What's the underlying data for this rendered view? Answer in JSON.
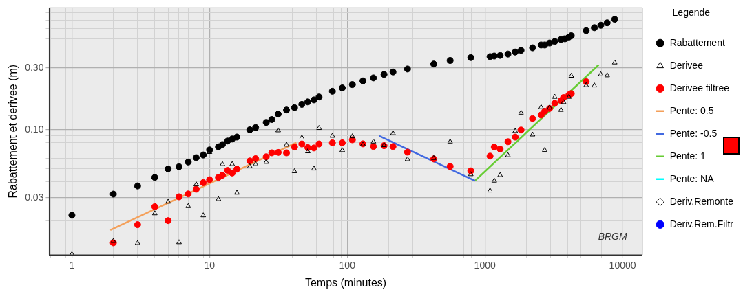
{
  "chart_data": {
    "type": "scatter",
    "xlabel": "Temps (minutes)",
    "ylabel": "Rabattement et derivee (m)",
    "legend": "right",
    "legend_title": "Legende",
    "log": "xy",
    "grid": true,
    "xlim": [
      0.684,
      13900
    ],
    "ylim": [
      0.0109,
      0.869
    ],
    "xticks": [
      {
        "value": 0.7,
        "label": null
      },
      {
        "value": 0.8,
        "label": null
      },
      {
        "value": 0.9,
        "label": null
      },
      1,
      {
        "value": 2,
        "label": null
      },
      {
        "value": 3,
        "label": null
      },
      {
        "value": 4,
        "label": null
      },
      {
        "value": 5,
        "label": null
      },
      {
        "value": 6,
        "label": null
      },
      {
        "value": 7,
        "label": null
      },
      {
        "value": 8,
        "label": null
      },
      {
        "value": 9,
        "label": null
      },
      10,
      {
        "value": 20,
        "label": null
      },
      {
        "value": 30,
        "label": null
      },
      {
        "value": 40,
        "label": null
      },
      {
        "value": 50,
        "label": null
      },
      {
        "value": 60,
        "label": null
      },
      {
        "value": 70,
        "label": null
      },
      {
        "value": 80,
        "label": null
      },
      {
        "value": 90,
        "label": null
      },
      100,
      {
        "value": 200,
        "label": null
      },
      {
        "value": 300,
        "label": null
      },
      {
        "value": 400,
        "label": null
      },
      {
        "value": 500,
        "label": null
      },
      {
        "value": 600,
        "label": null
      },
      {
        "value": 700,
        "label": null
      },
      {
        "value": 800,
        "label": null
      },
      {
        "value": 900,
        "label": null
      },
      1000,
      {
        "value": 2000,
        "label": null
      },
      {
        "value": 3000,
        "label": null
      },
      {
        "value": 4000,
        "label": null
      },
      {
        "value": 5000,
        "label": null
      },
      {
        "value": 6000,
        "label": null
      },
      {
        "value": 7000,
        "label": null
      },
      {
        "value": 8000,
        "label": null
      },
      {
        "value": 9000,
        "label": null
      },
      10000
    ],
    "yticks": [
      {
        "value": 0.02,
        "label": null
      },
      0.03,
      {
        "value": 0.04,
        "label": null
      },
      {
        "value": 0.05,
        "label": null
      },
      {
        "value": 0.06,
        "label": null
      },
      {
        "value": 0.07,
        "label": null
      },
      {
        "value": 0.08,
        "label": null
      },
      {
        "value": 0.09,
        "label": null
      },
      {
        "value": 0.1,
        "label": "0.10"
      },
      {
        "value": 0.2,
        "label": null
      },
      {
        "value": 0.3,
        "label": "0.30"
      },
      {
        "value": 0.4,
        "label": null
      },
      {
        "value": 0.5,
        "label": null
      },
      {
        "value": 0.6,
        "label": null
      },
      {
        "value": 0.7,
        "label": null
      },
      {
        "value": 0.8,
        "label": null
      }
    ],
    "annotations": [
      "BRGM"
    ],
    "series": [
      {
        "name": "Rabattement",
        "color": "#000000",
        "marker": "circle",
        "x": [
          1,
          2,
          3,
          4,
          5,
          6,
          7,
          8,
          9,
          10,
          11.6,
          12.4,
          13.5,
          14.6,
          15.8,
          19.6,
          21.6,
          25.8,
          28.3,
          31.5,
          36.2,
          41.4,
          46.8,
          51.7,
          57.3,
          62.4,
          78,
          92,
          109,
          130,
          155,
          185,
          215,
          274,
          425,
          559,
          790,
          1090,
          1170,
          1290,
          1470,
          1660,
          1830,
          2220,
          2560,
          2720,
          2950,
          3220,
          3570,
          3810,
          4080,
          4240,
          5440,
          6240,
          6950,
          7730,
          8770
        ],
        "values": [
          0.022,
          0.032,
          0.037,
          0.043,
          0.05,
          0.052,
          0.0565,
          0.061,
          0.064,
          0.07,
          0.074,
          0.077,
          0.082,
          0.085,
          0.088,
          0.1,
          0.104,
          0.114,
          0.12,
          0.132,
          0.142,
          0.148,
          0.157,
          0.164,
          0.17,
          0.179,
          0.198,
          0.21,
          0.223,
          0.238,
          0.251,
          0.267,
          0.279,
          0.294,
          0.321,
          0.342,
          0.36,
          0.366,
          0.37,
          0.374,
          0.383,
          0.397,
          0.409,
          0.428,
          0.45,
          0.45,
          0.466,
          0.479,
          0.496,
          0.502,
          0.518,
          0.53,
          0.58,
          0.611,
          0.638,
          0.666,
          0.709
        ]
      },
      {
        "name": "Derivee",
        "color": "#000000",
        "marker": "triangle",
        "x": [
          1,
          2,
          3,
          4,
          5,
          6,
          7,
          8,
          9,
          10,
          11.6,
          12.4,
          14.6,
          15.8,
          19.6,
          21.6,
          25.8,
          31.5,
          36.2,
          41.4,
          46.8,
          51.7,
          57.3,
          62.4,
          78,
          92,
          109,
          130,
          155,
          185,
          215,
          274,
          425,
          559,
          790,
          1090,
          1170,
          1290,
          1470,
          1660,
          1830,
          2220,
          2560,
          2720,
          2950,
          3220,
          3570,
          3730,
          4080,
          4240,
          5440,
          6240,
          6950,
          7730,
          8770
        ],
        "values": [
          0.011,
          0.0139,
          0.0134,
          0.0227,
          0.0279,
          0.0136,
          0.0258,
          0.0379,
          0.0219,
          0.0673,
          0.0292,
          0.0543,
          0.0543,
          0.0327,
          0.0522,
          0.0543,
          0.0565,
          0.0988,
          0.0766,
          0.0479,
          0.0869,
          0.0681,
          0.0502,
          0.103,
          0.0897,
          0.0695,
          0.0889,
          0.0772,
          0.081,
          0.076,
          0.094,
          0.0592,
          0.0605,
          0.081,
          0.0454,
          0.034,
          0.0405,
          0.0447,
          0.0636,
          0.0977,
          0.135,
          0.0918,
          0.149,
          0.0697,
          0.148,
          0.179,
          0.142,
          0.163,
          0.179,
          0.26,
          0.22,
          0.219,
          0.267,
          0.262,
          0.329
        ]
      },
      {
        "name": "Derivee filtree",
        "color": "#ff0000",
        "marker": "circle",
        "x": [
          2,
          3,
          4,
          5,
          6,
          7,
          8,
          9,
          10,
          11.6,
          12.4,
          13.5,
          14.6,
          15.8,
          19.6,
          21.6,
          25.8,
          28.3,
          31.5,
          36.2,
          41.4,
          46.8,
          51.7,
          57.3,
          62.4,
          78,
          92,
          109,
          130,
          155,
          185,
          215,
          274,
          425,
          559,
          790,
          1090,
          1170,
          1290,
          1470,
          1660,
          1830,
          2220,
          2560,
          2720,
          2950,
          3220,
          3570,
          3730,
          4080,
          4240,
          5440
        ],
        "values": [
          0.0135,
          0.0186,
          0.0256,
          0.02,
          0.0305,
          0.0321,
          0.0349,
          0.0392,
          0.0413,
          0.043,
          0.0447,
          0.0487,
          0.0465,
          0.0498,
          0.0576,
          0.06,
          0.062,
          0.0665,
          0.067,
          0.0665,
          0.0737,
          0.0778,
          0.073,
          0.0725,
          0.0778,
          0.0794,
          0.0794,
          0.0838,
          0.078,
          0.0743,
          0.0755,
          0.0743,
          0.0673,
          0.0597,
          0.0523,
          0.0483,
          0.0627,
          0.0737,
          0.0711,
          0.081,
          0.0879,
          0.0996,
          0.122,
          0.13,
          0.139,
          0.146,
          0.16,
          0.168,
          0.177,
          0.186,
          0.19,
          0.235
        ]
      },
      {
        "name": "Pente: 0.5",
        "type": "line",
        "color": "#f4a05a",
        "marker": "none",
        "x": [
          1.9,
          42.7
        ],
        "values": [
          0.0169,
          0.0796
        ]
      },
      {
        "name": "Pente: -0.5",
        "type": "line",
        "color": "#4169e1",
        "marker": "none",
        "x": [
          171,
          847
        ],
        "values": [
          0.0897,
          0.0405
        ]
      },
      {
        "name": "Pente: 1",
        "type": "line",
        "color": "#66cc33",
        "marker": "none",
        "x": [
          847,
          6700
        ],
        "values": [
          0.0405,
          0.316
        ]
      },
      {
        "name": "Pente: NA",
        "type": "line",
        "color": "#00ffff",
        "marker": "none"
      },
      {
        "name": "Deriv.Remonte",
        "color": "#000000",
        "marker": "diamond"
      },
      {
        "name": "Deriv.Rem.Filtr",
        "color": "#0000ff",
        "marker": "circle"
      }
    ]
  }
}
